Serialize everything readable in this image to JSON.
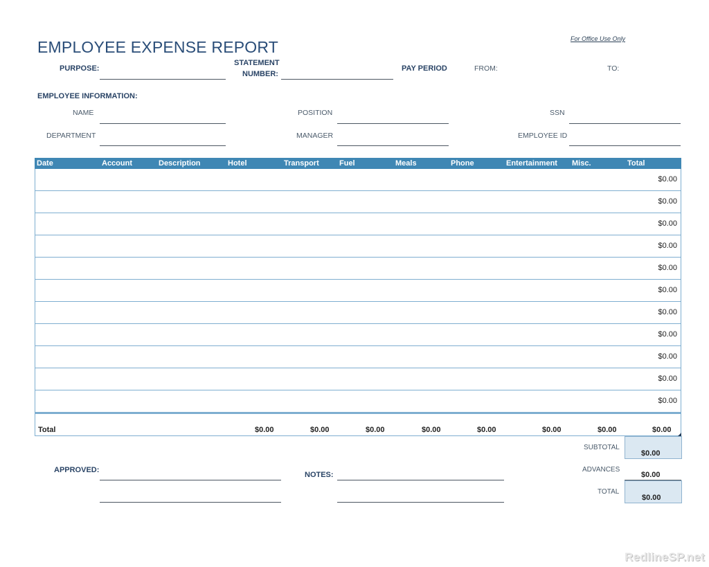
{
  "header": {
    "office_use": "For Office Use Only",
    "title": "EMPLOYEE EXPENSE REPORT",
    "purpose_label": "PURPOSE:",
    "statement_label_1": "STATEMENT",
    "statement_label_2": "NUMBER:",
    "pay_period_label": "PAY PERIOD",
    "from_label": "FROM:",
    "to_label": "TO:"
  },
  "employee_info": {
    "section_title": "EMPLOYEE INFORMATION:",
    "name_label": "NAME",
    "position_label": "POSITION",
    "ssn_label": "SSN",
    "department_label": "DEPARTMENT",
    "manager_label": "MANAGER",
    "employee_id_label": "EMPLOYEE ID"
  },
  "table": {
    "columns": [
      "Date",
      "Account",
      "Description",
      "Hotel",
      "Transport",
      "Fuel",
      "Meals",
      "Phone",
      "Entertainment",
      "Misc.",
      "Total"
    ],
    "rows": [
      {
        "total": "$0.00"
      },
      {
        "total": "$0.00"
      },
      {
        "total": "$0.00"
      },
      {
        "total": "$0.00"
      },
      {
        "total": "$0.00"
      },
      {
        "total": "$0.00"
      },
      {
        "total": "$0.00"
      },
      {
        "total": "$0.00"
      },
      {
        "total": "$0.00"
      },
      {
        "total": "$0.00"
      },
      {
        "total": "$0.00"
      }
    ],
    "totals": {
      "label": "Total",
      "hotel": "$0.00",
      "transport": "$0.00",
      "fuel": "$0.00",
      "meals": "$0.00",
      "phone": "$0.00",
      "entertainment": "$0.00",
      "misc": "$0.00",
      "total": "$0.00"
    }
  },
  "summary": {
    "subtotal_label": "SUBTOTAL",
    "subtotal": "$0.00",
    "advances_label": "ADVANCES",
    "advances": "$0.00",
    "total_label": "TOTAL",
    "total": "$0.00"
  },
  "footer": {
    "approved_label": "APPROVED:",
    "notes_label": "NOTES:"
  },
  "watermark": "RedlineSP.net",
  "colors": {
    "header_bar": "#3f87b4",
    "summary_fill": "#dbe8f2",
    "title": "#2a4d78"
  }
}
